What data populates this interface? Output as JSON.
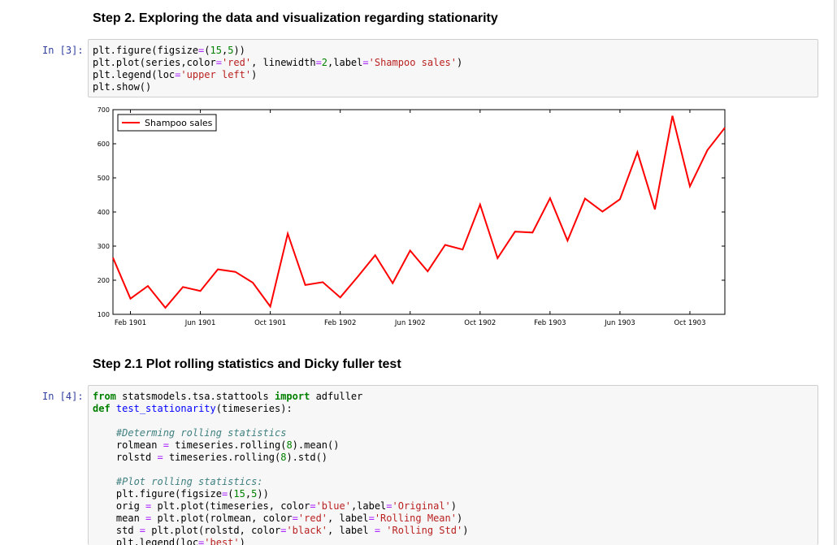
{
  "headings": {
    "step2": "Step 2. Exploring the data and visualization regarding stationarity",
    "step21": "Step 2.1 Plot rolling statistics and Dicky fuller test"
  },
  "cells": [
    {
      "prompt": "In [3]:",
      "lines": [
        "plt.figure(figsize=(15,5))",
        "plt.plot(series,color='red', linewidth=2,label='Shampoo sales')",
        "plt.legend(loc='upper left')",
        "plt.show()"
      ]
    },
    {
      "prompt": "In [4]:",
      "lines": [
        "from statsmodels.tsa.stattools import adfuller",
        "def test_stationarity(timeseries):",
        "",
        "    #Determing rolling statistics",
        "    rolmean = timeseries.rolling(8).mean()",
        "    rolstd = timeseries.rolling(8).std()",
        "",
        "    #Plot rolling statistics:",
        "    plt.figure(figsize=(15,5))",
        "    orig = plt.plot(timeseries, color='blue',label='Original')",
        "    mean = plt.plot(rolmean, color='red', label='Rolling Mean')",
        "    std = plt.plot(rolstd, color='black', label = 'Rolling Std')",
        "    plt.legend(loc='best')"
      ]
    }
  ],
  "chart_data": {
    "type": "line",
    "title": "",
    "xlabel": "",
    "ylabel": "",
    "x": [
      "1901-01",
      "1901-02",
      "1901-03",
      "1901-04",
      "1901-05",
      "1901-06",
      "1901-07",
      "1901-08",
      "1901-09",
      "1901-10",
      "1901-11",
      "1901-12",
      "1902-01",
      "1902-02",
      "1902-03",
      "1902-04",
      "1902-05",
      "1902-06",
      "1902-07",
      "1902-08",
      "1902-09",
      "1902-10",
      "1902-11",
      "1902-12",
      "1903-01",
      "1903-02",
      "1903-03",
      "1903-04",
      "1903-05",
      "1903-06",
      "1903-07",
      "1903-08",
      "1903-09",
      "1903-10",
      "1903-11",
      "1903-12"
    ],
    "series": [
      {
        "name": "Shampoo sales",
        "color": "#ff0000",
        "values": [
          266.0,
          145.9,
          183.1,
          119.3,
          180.3,
          168.5,
          231.8,
          224.5,
          192.8,
          122.9,
          336.5,
          185.9,
          194.3,
          149.5,
          210.1,
          273.3,
          191.4,
          287.0,
          226.0,
          303.6,
          289.9,
          421.6,
          264.5,
          342.3,
          339.7,
          440.4,
          315.9,
          439.3,
          401.3,
          437.4,
          575.5,
          407.6,
          682.0,
          475.3,
          581.3,
          646.9
        ]
      }
    ],
    "ylim": [
      100,
      700
    ],
    "yticks": [
      100,
      200,
      300,
      400,
      500,
      600,
      700
    ],
    "xticks": [
      {
        "x": "1901-02",
        "label": "Feb 1901"
      },
      {
        "x": "1901-06",
        "label": "Jun 1901"
      },
      {
        "x": "1901-10",
        "label": "Oct 1901"
      },
      {
        "x": "1902-02",
        "label": "Feb 1902"
      },
      {
        "x": "1902-06",
        "label": "Jun 1902"
      },
      {
        "x": "1902-10",
        "label": "Oct 1902"
      },
      {
        "x": "1903-02",
        "label": "Feb 1903"
      },
      {
        "x": "1903-06",
        "label": "Jun 1903"
      },
      {
        "x": "1903-10",
        "label": "Oct 1903"
      }
    ],
    "legend": "upper left",
    "grid": false
  }
}
